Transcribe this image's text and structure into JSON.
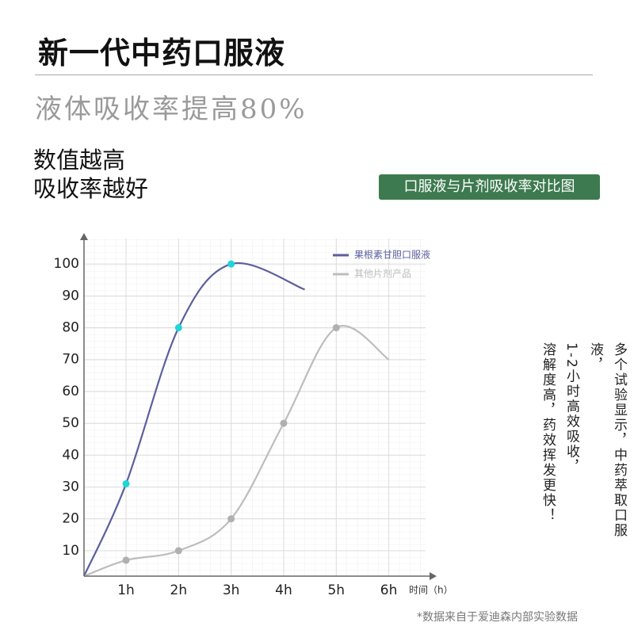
{
  "header": {
    "title": "新一代中药口服液",
    "subtitle": "液体吸收率提高80%",
    "headline": [
      "数值越高",
      "吸收率越好"
    ],
    "badge": "口服液与片剂吸收率对比图"
  },
  "chart_data": {
    "type": "line",
    "x_label": "时间（h）",
    "xlim": [
      0.2,
      6.7
    ],
    "ylim": [
      2,
      108
    ],
    "xticks": [
      {
        "value": 1,
        "label": "1h"
      },
      {
        "value": 2,
        "label": "2h"
      },
      {
        "value": 3,
        "label": "3h"
      },
      {
        "value": 4,
        "label": "4h"
      },
      {
        "value": 5,
        "label": "5h"
      },
      {
        "value": 6,
        "label": "6h"
      }
    ],
    "yticks": [
      10,
      20,
      30,
      40,
      50,
      60,
      70,
      80,
      90,
      100
    ],
    "grid": true,
    "legend": "top-right",
    "series": [
      {
        "name": "果根素甘胆口服液",
        "color": "#5b5f9e",
        "marker_color": "#1fd6d6",
        "x": [
          0.2,
          1,
          2,
          3,
          4.4
        ],
        "values": [
          2,
          31,
          80,
          100,
          92
        ]
      },
      {
        "name": "其他片剂产品",
        "color": "#bdbdbd",
        "marker_color": "#b0b0b0",
        "x": [
          0.2,
          1,
          2,
          3,
          4,
          5,
          6
        ],
        "values": [
          2,
          7,
          10,
          20,
          50,
          80,
          70
        ]
      }
    ]
  },
  "side_note": [
    "多个试验显示，中药萃取口服液，",
    "1-2小时高效吸收，",
    "溶解度高，药效挥发更快！"
  ],
  "footnote": "*数据来自于爱迪森内部实验数据"
}
